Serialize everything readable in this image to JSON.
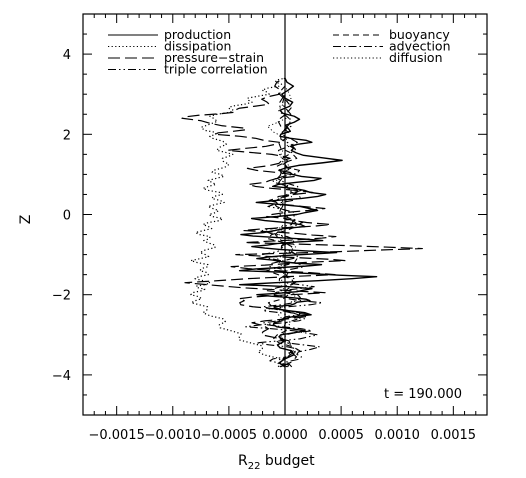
{
  "chart_data": {
    "type": "line",
    "title": "",
    "xlabel_main": "R",
    "xlabel_sub": "22",
    "xlabel_rest": " budget",
    "ylabel": "Z",
    "xlim": [
      -0.0018,
      0.0018
    ],
    "ylim": [
      -5,
      5
    ],
    "x_ticks": [
      -0.0015,
      -0.001,
      -0.0005,
      0.0,
      0.0005,
      0.001,
      0.0015
    ],
    "x_tick_labels": [
      "−0.0015",
      "−0.0010",
      "−0.0005",
      "0.0000",
      "0.0005",
      "0.0010",
      "0.0015"
    ],
    "y_ticks": [
      -4,
      -2,
      0,
      2,
      4
    ],
    "y_tick_labels": [
      "−4",
      "−2",
      "0",
      "2",
      "4"
    ],
    "grid": false,
    "annotation": "t = 190.000",
    "legend_left": [
      {
        "name": "production",
        "dash": "solid"
      },
      {
        "name": "dissipation",
        "dash": "dotted"
      },
      {
        "name": "pressure−strain",
        "dash": "longdash"
      },
      {
        "name": "triple correlation",
        "dash": "dashdotdot"
      }
    ],
    "legend_right": [
      {
        "name": "buoyancy",
        "dash": "dashed"
      },
      {
        "name": "advection",
        "dash": "dashdot"
      },
      {
        "name": "diffusion",
        "dash": "dotted"
      }
    ],
    "series": [
      {
        "name": "production",
        "dash": "solid",
        "width": 1.4,
        "points": [
          [
            0.0,
            -3.8
          ],
          [
            3e-05,
            -3.4
          ],
          [
            -8e-05,
            -3.1
          ],
          [
            0.00012,
            -2.9
          ],
          [
            -0.00015,
            -2.7
          ],
          [
            0.0002,
            -2.5
          ],
          [
            -0.0001,
            -2.3
          ],
          [
            0.00025,
            -2.15
          ],
          [
            -0.0002,
            -2.0
          ],
          [
            0.0003,
            -1.85
          ],
          [
            -0.00035,
            -1.75
          ],
          [
            0.00085,
            -1.55
          ],
          [
            -0.0004,
            -1.4
          ],
          [
            0.0003,
            -1.25
          ],
          [
            -0.0003,
            -1.1
          ],
          [
            0.0004,
            -0.95
          ],
          [
            -0.00035,
            -0.8
          ],
          [
            0.0003,
            -0.65
          ],
          [
            -0.0004,
            -0.5
          ],
          [
            0.0002,
            -0.3
          ],
          [
            -0.00025,
            -0.1
          ],
          [
            0.00035,
            0.1
          ],
          [
            -0.0002,
            0.3
          ],
          [
            0.0004,
            0.5
          ],
          [
            -0.0001,
            0.7
          ],
          [
            0.0003,
            0.9
          ],
          [
            -0.0001,
            1.1
          ],
          [
            0.00045,
            1.35
          ],
          [
            0.0,
            1.6
          ],
          [
            0.0002,
            1.8
          ],
          [
            -5e-05,
            2.0
          ],
          [
            0.0001,
            2.3
          ],
          [
            0.0,
            2.6
          ],
          [
            3e-05,
            3.0
          ],
          [
            0.0,
            3.4
          ]
        ]
      },
      {
        "name": "dissipation",
        "dash": "dotted",
        "width": 1.2,
        "points": [
          [
            0.0,
            -3.8
          ],
          [
            -0.00015,
            -3.5
          ],
          [
            -0.0003,
            -3.2
          ],
          [
            -0.0005,
            -2.9
          ],
          [
            -0.0006,
            -2.6
          ],
          [
            -0.00075,
            -2.3
          ],
          [
            -0.0008,
            -2.1
          ],
          [
            -0.00078,
            -1.9
          ],
          [
            -0.00072,
            -1.75
          ],
          [
            -0.00075,
            -1.55
          ],
          [
            -0.0007,
            -1.35
          ],
          [
            -0.00078,
            -1.15
          ],
          [
            -0.0007,
            -0.95
          ],
          [
            -0.00065,
            -0.7
          ],
          [
            -0.00075,
            -0.5
          ],
          [
            -0.0007,
            -0.3
          ],
          [
            -0.0006,
            -0.1
          ],
          [
            -0.00065,
            0.1
          ],
          [
            -0.0006,
            0.3
          ],
          [
            -0.0006,
            0.5
          ],
          [
            -0.0007,
            0.7
          ],
          [
            -0.0006,
            0.9
          ],
          [
            -0.0006,
            1.1
          ],
          [
            -0.0005,
            1.4
          ],
          [
            -0.00055,
            1.6
          ],
          [
            -0.0006,
            1.9
          ],
          [
            -0.0007,
            2.1
          ],
          [
            -0.00065,
            2.4
          ],
          [
            -0.0005,
            2.6
          ],
          [
            -0.00035,
            2.8
          ],
          [
            -0.0002,
            3.0
          ],
          [
            -0.0001,
            3.2
          ],
          [
            0.0,
            3.4
          ]
        ]
      },
      {
        "name": "pressure−strain",
        "dash": "longdash",
        "width": 1.2,
        "points": [
          [
            0.0,
            -3.8
          ],
          [
            0.0001,
            -3.3
          ],
          [
            -0.00015,
            -3.0
          ],
          [
            -0.00025,
            -2.7
          ],
          [
            0.00025,
            -2.5
          ],
          [
            -0.0003,
            -2.3
          ],
          [
            -0.00045,
            -2.1
          ],
          [
            0.0003,
            -1.95
          ],
          [
            -0.00095,
            -1.7
          ],
          [
            0.0004,
            -1.5
          ],
          [
            -0.0005,
            -1.3
          ],
          [
            0.00055,
            -1.15
          ],
          [
            -0.0004,
            -1.0
          ],
          [
            0.00128,
            -0.85
          ],
          [
            -0.0003,
            -0.7
          ],
          [
            0.0005,
            -0.55
          ],
          [
            -0.00035,
            -0.4
          ],
          [
            0.0004,
            -0.25
          ],
          [
            -0.0002,
            -0.05
          ],
          [
            0.0003,
            0.15
          ],
          [
            -0.0002,
            0.35
          ],
          [
            0.0002,
            0.55
          ],
          [
            -0.00035,
            0.75
          ],
          [
            0.0001,
            0.95
          ],
          [
            -0.0003,
            1.15
          ],
          [
            0.0001,
            1.4
          ],
          [
            -0.00045,
            1.6
          ],
          [
            0.0,
            1.8
          ],
          [
            -0.0006,
            2.0
          ],
          [
            -0.00035,
            2.15
          ],
          [
            -0.00095,
            2.4
          ],
          [
            -0.0005,
            2.55
          ],
          [
            -0.0002,
            2.75
          ],
          [
            -0.0001,
            3.0
          ],
          [
            0.0,
            3.4
          ]
        ]
      },
      {
        "name": "triple correlation",
        "dash": "dashdotdot",
        "width": 1.1,
        "points": [
          [
            0.0,
            -3.8
          ],
          [
            -0.0001,
            -3.6
          ],
          [
            0.00015,
            -3.4
          ],
          [
            -0.0002,
            -3.2
          ],
          [
            0.00035,
            -3.0
          ],
          [
            -0.0003,
            -2.8
          ],
          [
            0.0002,
            -2.6
          ],
          [
            -0.0002,
            -2.4
          ],
          [
            0.0003,
            -2.2
          ],
          [
            -0.00015,
            -2.0
          ],
          [
            0.0002,
            -1.8
          ],
          [
            -0.0001,
            -1.6
          ],
          [
            0.00015,
            -1.3
          ],
          [
            -0.0002,
            -1.0
          ],
          [
            0.0001,
            -0.7
          ],
          [
            -0.00015,
            -0.4
          ],
          [
            0.00015,
            -0.1
          ],
          [
            -0.0001,
            0.2
          ],
          [
            0.00015,
            0.5
          ],
          [
            -0.0001,
            0.8
          ],
          [
            0.0001,
            1.1
          ],
          [
            -5e-05,
            1.4
          ],
          [
            5e-05,
            1.8
          ],
          [
            0.0,
            2.2
          ],
          [
            0.0,
            3.0
          ]
        ]
      },
      {
        "name": "buoyancy",
        "dash": "dashed",
        "width": 1.1,
        "points": [
          [
            0.0,
            -3.8
          ],
          [
            8e-05,
            -3.4
          ],
          [
            -0.0001,
            -3.0
          ],
          [
            0.00012,
            -2.6
          ],
          [
            -0.00012,
            -2.2
          ],
          [
            0.0001,
            -1.8
          ],
          [
            -0.0001,
            -1.4
          ],
          [
            0.00015,
            -1.0
          ],
          [
            -0.00012,
            -0.6
          ],
          [
            0.0001,
            -0.2
          ],
          [
            -0.0001,
            0.2
          ],
          [
            8e-05,
            0.6
          ],
          [
            -8e-05,
            1.0
          ],
          [
            5e-05,
            1.4
          ],
          [
            -3e-05,
            1.9
          ],
          [
            0.0,
            2.5
          ],
          [
            0.0,
            3.2
          ]
        ]
      },
      {
        "name": "advection",
        "dash": "dashdot",
        "width": 1.1,
        "points": [
          [
            0.0,
            -3.8
          ],
          [
            0.0001,
            -3.55
          ],
          [
            0.00025,
            -3.3
          ],
          [
            -0.0001,
            -3.1
          ],
          [
            0.0002,
            -2.9
          ],
          [
            -0.0002,
            -2.7
          ],
          [
            0.00015,
            -2.5
          ],
          [
            -0.00015,
            -2.3
          ],
          [
            0.0002,
            -2.1
          ],
          [
            -0.0001,
            -1.9
          ],
          [
            0.00012,
            -1.6
          ],
          [
            -0.00012,
            -1.3
          ],
          [
            0.0001,
            -1.0
          ],
          [
            -0.0001,
            -0.6
          ],
          [
            0.0001,
            -0.2
          ],
          [
            -8e-05,
            0.2
          ],
          [
            0.0001,
            0.6
          ],
          [
            -5e-05,
            1.0
          ],
          [
            5e-05,
            1.5
          ],
          [
            0.0,
            2.0
          ],
          [
            0.0,
            3.0
          ]
        ]
      },
      {
        "name": "diffusion",
        "dash": "dotted",
        "width": 0.9,
        "points": [
          [
            0.0,
            -3.8
          ],
          [
            4e-05,
            -3.2
          ],
          [
            -4e-05,
            -2.6
          ],
          [
            5e-05,
            -2.0
          ],
          [
            -5e-05,
            -1.4
          ],
          [
            4e-05,
            -0.8
          ],
          [
            -4e-05,
            -0.2
          ],
          [
            3e-05,
            0.4
          ],
          [
            -3e-05,
            1.0
          ],
          [
            2e-05,
            1.6
          ],
          [
            -0.0001,
            2.2
          ],
          [
            0.0,
            2.6
          ],
          [
            0.0,
            3.2
          ]
        ]
      }
    ]
  }
}
